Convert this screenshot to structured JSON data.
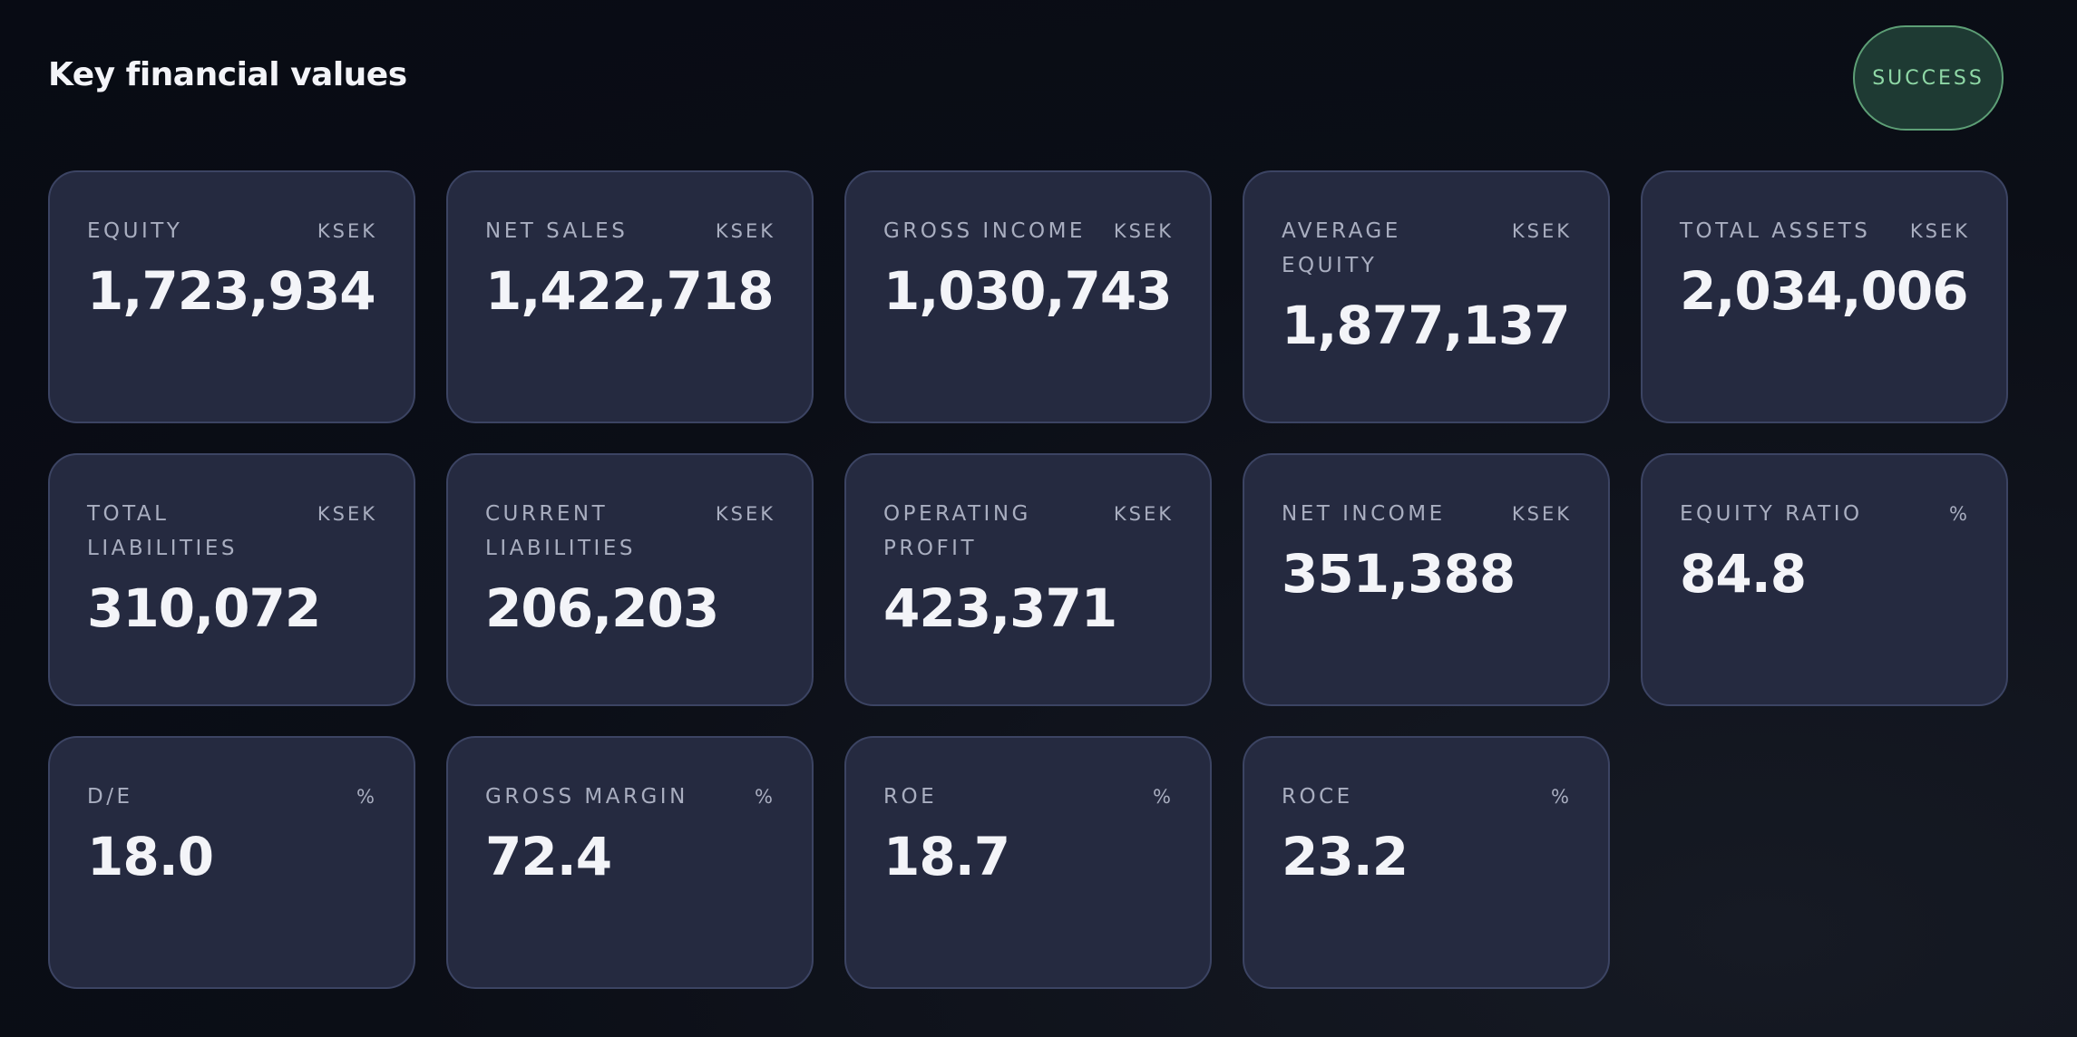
{
  "header": {
    "title": "Key financial values",
    "status": "SUCCESS"
  },
  "cards": [
    {
      "label": "EQUITY",
      "unit": "KSEK",
      "value": "1,723,934"
    },
    {
      "label": "NET SALES",
      "unit": "KSEK",
      "value": "1,422,718"
    },
    {
      "label": "GROSS INCOME",
      "unit": "KSEK",
      "value": "1,030,743"
    },
    {
      "label": "AVERAGE EQUITY",
      "unit": "KSEK",
      "value": "1,877,137"
    },
    {
      "label": "TOTAL ASSETS",
      "unit": "KSEK",
      "value": "2,034,006"
    },
    {
      "label": "TOTAL LIABILITIES",
      "unit": "KSEK",
      "value": "310,072"
    },
    {
      "label": "CURRENT LIABILITIES",
      "unit": "KSEK",
      "value": "206,203"
    },
    {
      "label": "OPERATING PROFIT",
      "unit": "KSEK",
      "value": "423,371"
    },
    {
      "label": "NET INCOME",
      "unit": "KSEK",
      "value": "351,388"
    },
    {
      "label": "EQUITY RATIO",
      "unit": "%",
      "value": "84.8"
    },
    {
      "label": "D/E",
      "unit": "%",
      "value": "18.0"
    },
    {
      "label": "GROSS MARGIN",
      "unit": "%",
      "value": "72.4"
    },
    {
      "label": "ROE",
      "unit": "%",
      "value": "18.7"
    },
    {
      "label": "ROCE",
      "unit": "%",
      "value": "23.2"
    }
  ]
}
